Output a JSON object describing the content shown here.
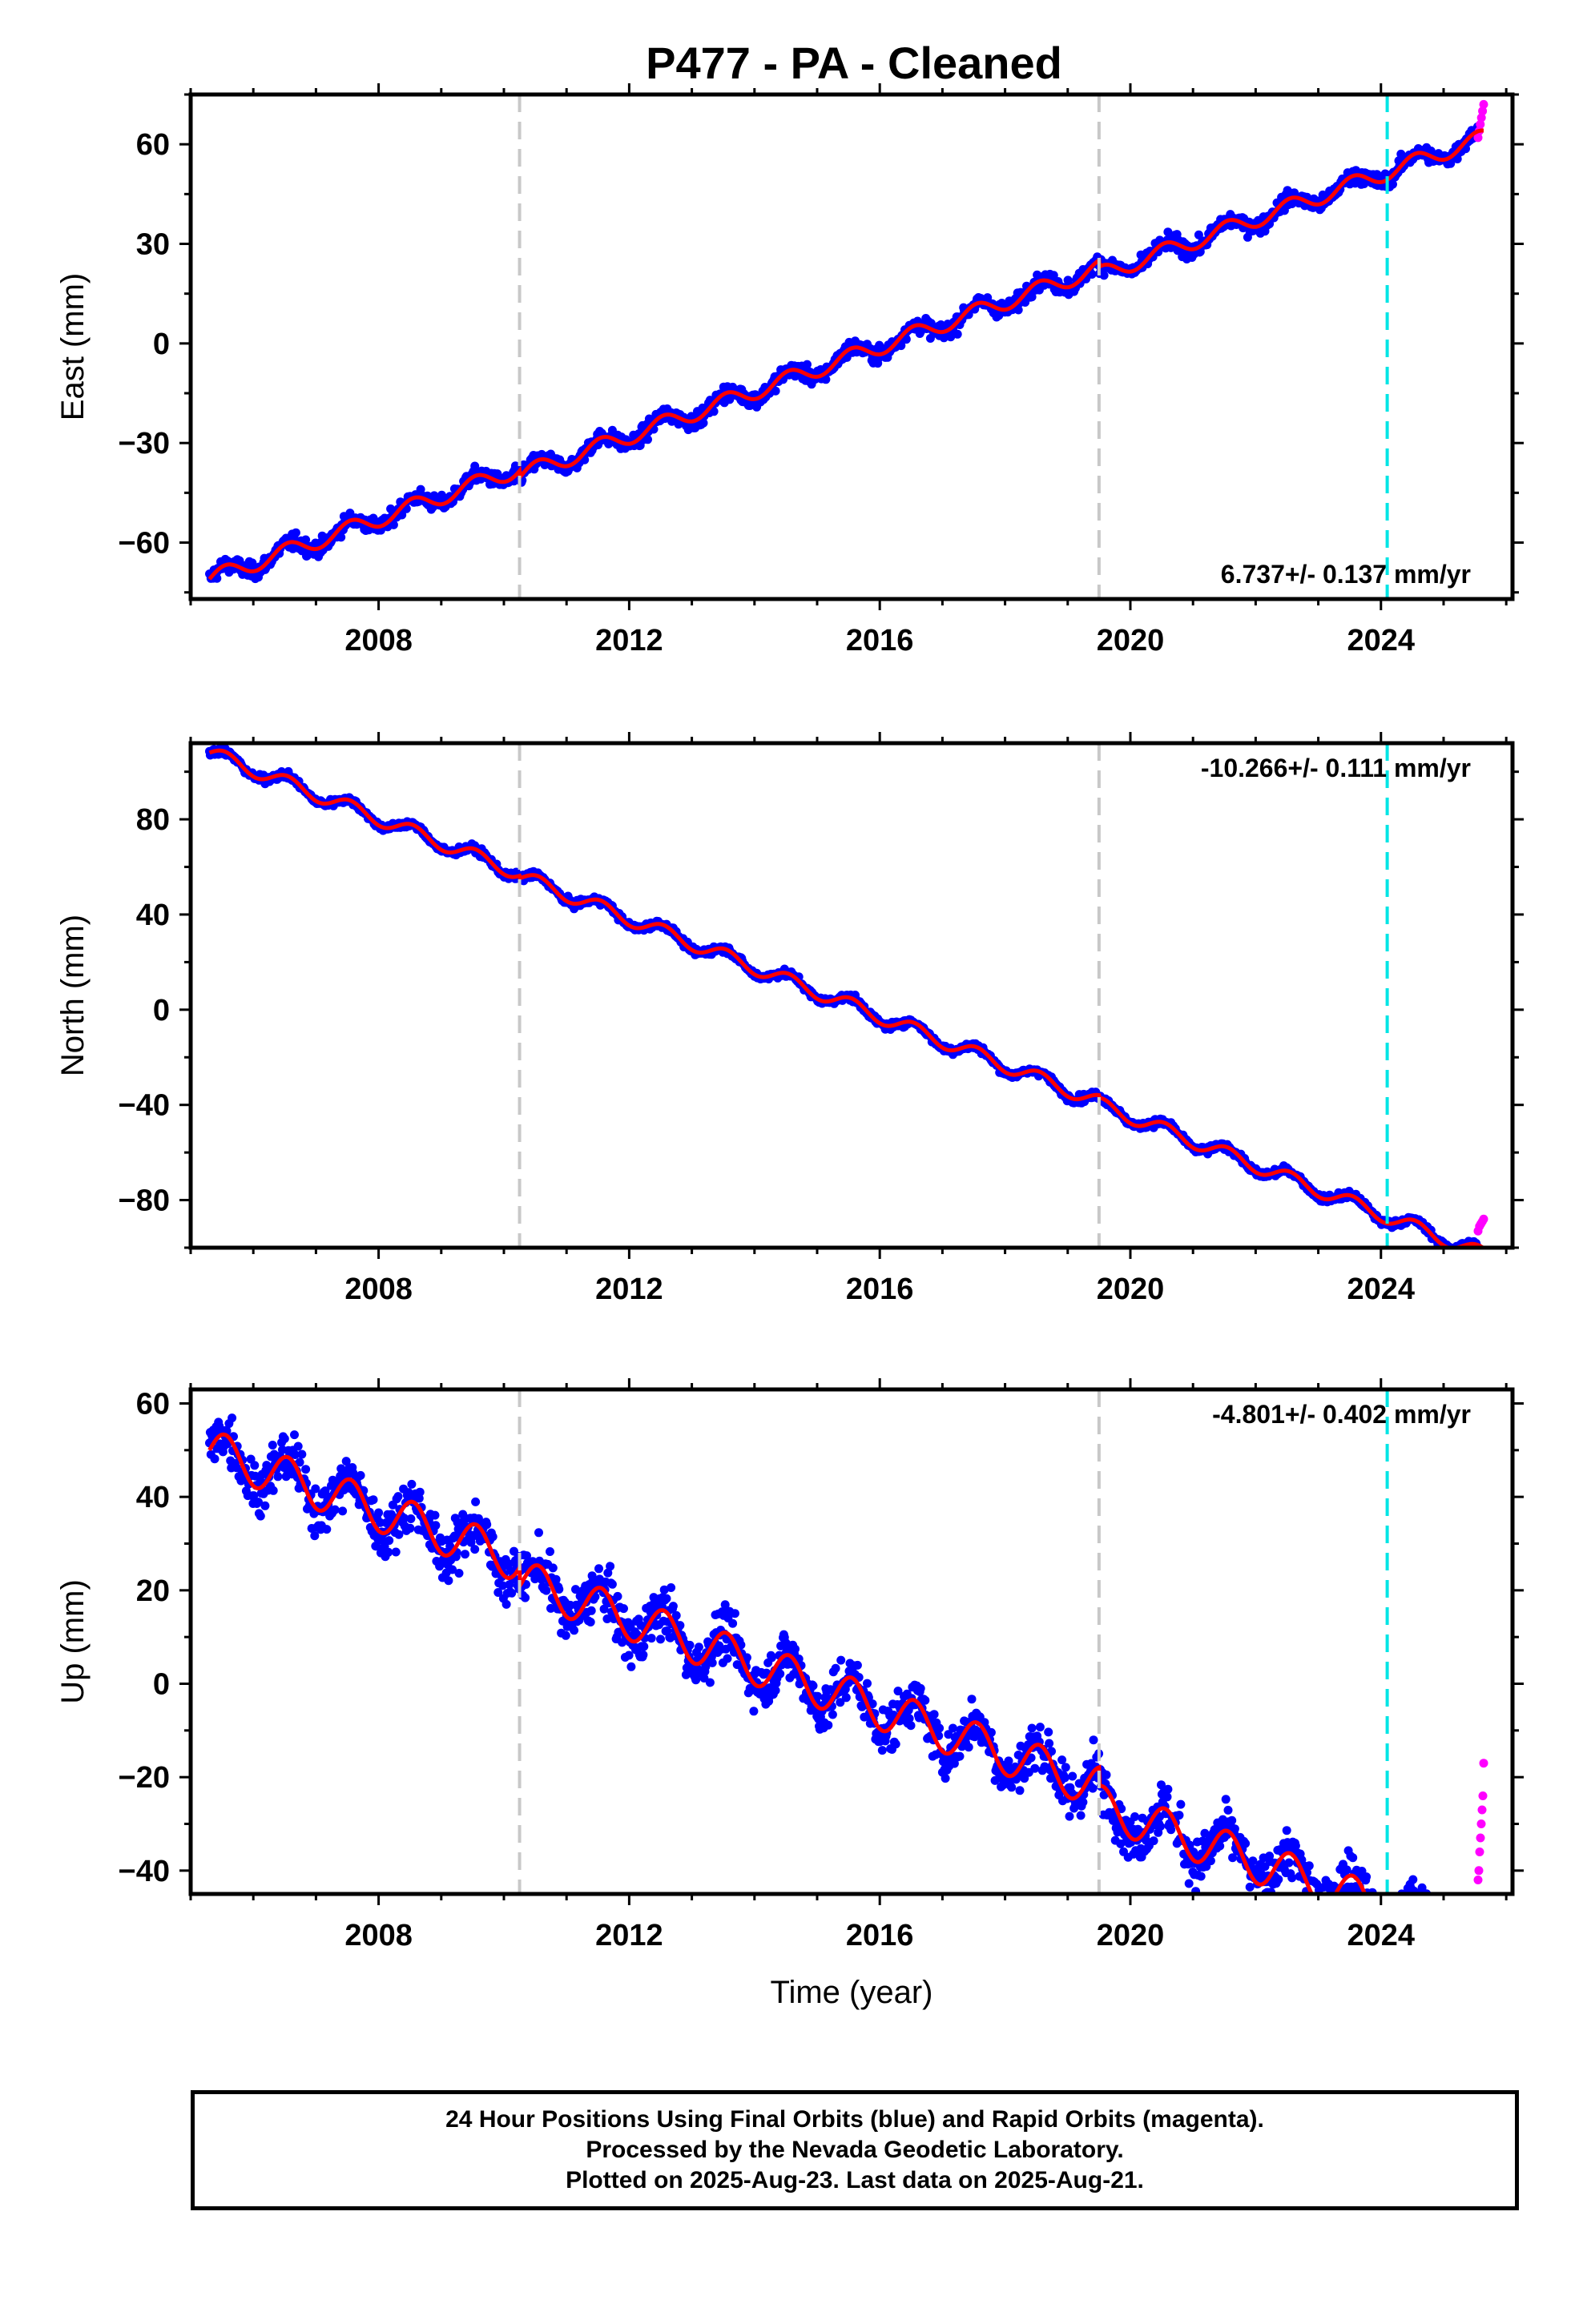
{
  "page_title": "P477  - PA - Cleaned",
  "colors": {
    "final_points": "#0000ff",
    "rapid_points": "#ff00ff",
    "model_line": "#ff0000",
    "equipment_change": "#c8c8c8",
    "earthquake_marker": "#00e5e5"
  },
  "footer": {
    "line1": "24 Hour Positions Using Final Orbits (blue) and Rapid Orbits (magenta).",
    "line2": "Processed by the Nevada Geodetic Laboratory.",
    "line3": "Plotted on 2025-Aug-23. Last data on 2025-Aug-21."
  },
  "chart_data": [
    {
      "type": "scatter",
      "ylabel": "East (mm)",
      "xlabel": "",
      "rate_text": "6.737+/- 0.137 mm/yr",
      "rate_position": "bottom-right",
      "xlim": [
        2005.0,
        2026.1
      ],
      "ylim": [
        -77,
        75
      ],
      "x_ticks": [
        2008,
        2012,
        2016,
        2020,
        2024
      ],
      "y_ticks": [
        -60,
        -30,
        0,
        30,
        60
      ],
      "y_tick_labels": [
        "−60",
        "−30",
        "0",
        "30",
        "60"
      ],
      "vlines_gray": [
        2010.25,
        2019.5
      ],
      "vlines_cyan": [
        2024.1
      ],
      "trend": {
        "start_year": 2005.3,
        "start_value": -71,
        "slope": 6.737,
        "seasonal_amplitude": 2.5
      },
      "final_range": [
        2005.3,
        2025.55
      ],
      "rapid_range": [
        2025.55,
        2025.64
      ],
      "rapid_values": [
        62,
        64,
        66,
        68,
        70,
        72
      ],
      "scatter_noise": 2.0,
      "step_at_gray": -2
    },
    {
      "type": "scatter",
      "ylabel": "North (mm)",
      "xlabel": "",
      "rate_text": "-10.266+/- 0.111 mm/yr",
      "rate_position": "top-right",
      "xlim": [
        2005.0,
        2026.1
      ],
      "ylim": [
        -100,
        112
      ],
      "x_ticks": [
        2008,
        2012,
        2016,
        2020,
        2024
      ],
      "y_ticks": [
        -80,
        -40,
        0,
        40,
        80
      ],
      "y_tick_labels": [
        "−80",
        "−40",
        "0",
        "40",
        "80"
      ],
      "vlines_gray": [
        2010.25,
        2019.5
      ],
      "vlines_cyan": [
        2024.1
      ],
      "trend": {
        "start_year": 2005.3,
        "start_value": 108,
        "slope": -10.266,
        "seasonal_amplitude": 3.0
      },
      "final_range": [
        2005.3,
        2025.55
      ],
      "rapid_range": [
        2025.55,
        2025.64
      ],
      "rapid_values": [
        -93,
        -91,
        -90,
        -89,
        -88
      ],
      "scatter_noise": 1.3,
      "step_at_gray": -1
    },
    {
      "type": "scatter",
      "ylabel": "Up (mm)",
      "xlabel": "Time (year)",
      "rate_text": "-4.801+/- 0.402 mm/yr",
      "rate_position": "top-right",
      "xlim": [
        2005.0,
        2026.1
      ],
      "ylim": [
        -45,
        63
      ],
      "x_ticks": [
        2008,
        2012,
        2016,
        2020,
        2024
      ],
      "y_ticks": [
        -40,
        -20,
        0,
        20,
        40,
        60
      ],
      "y_tick_labels": [
        "−40",
        "−20",
        "0",
        "20",
        "40",
        "60"
      ],
      "vlines_gray": [
        2010.25,
        2019.5
      ],
      "vlines_cyan": [
        2024.1
      ],
      "trend": {
        "start_year": 2005.3,
        "start_value": 50,
        "slope": -4.801,
        "seasonal_amplitude": 4.5
      },
      "final_range": [
        2005.3,
        2025.55
      ],
      "rapid_range": [
        2025.55,
        2025.64
      ],
      "rapid_values": [
        -42,
        -40,
        -36,
        -33,
        -30,
        -27,
        -24,
        -17
      ],
      "scatter_noise": 4.5,
      "step_at_gray": -4
    }
  ]
}
